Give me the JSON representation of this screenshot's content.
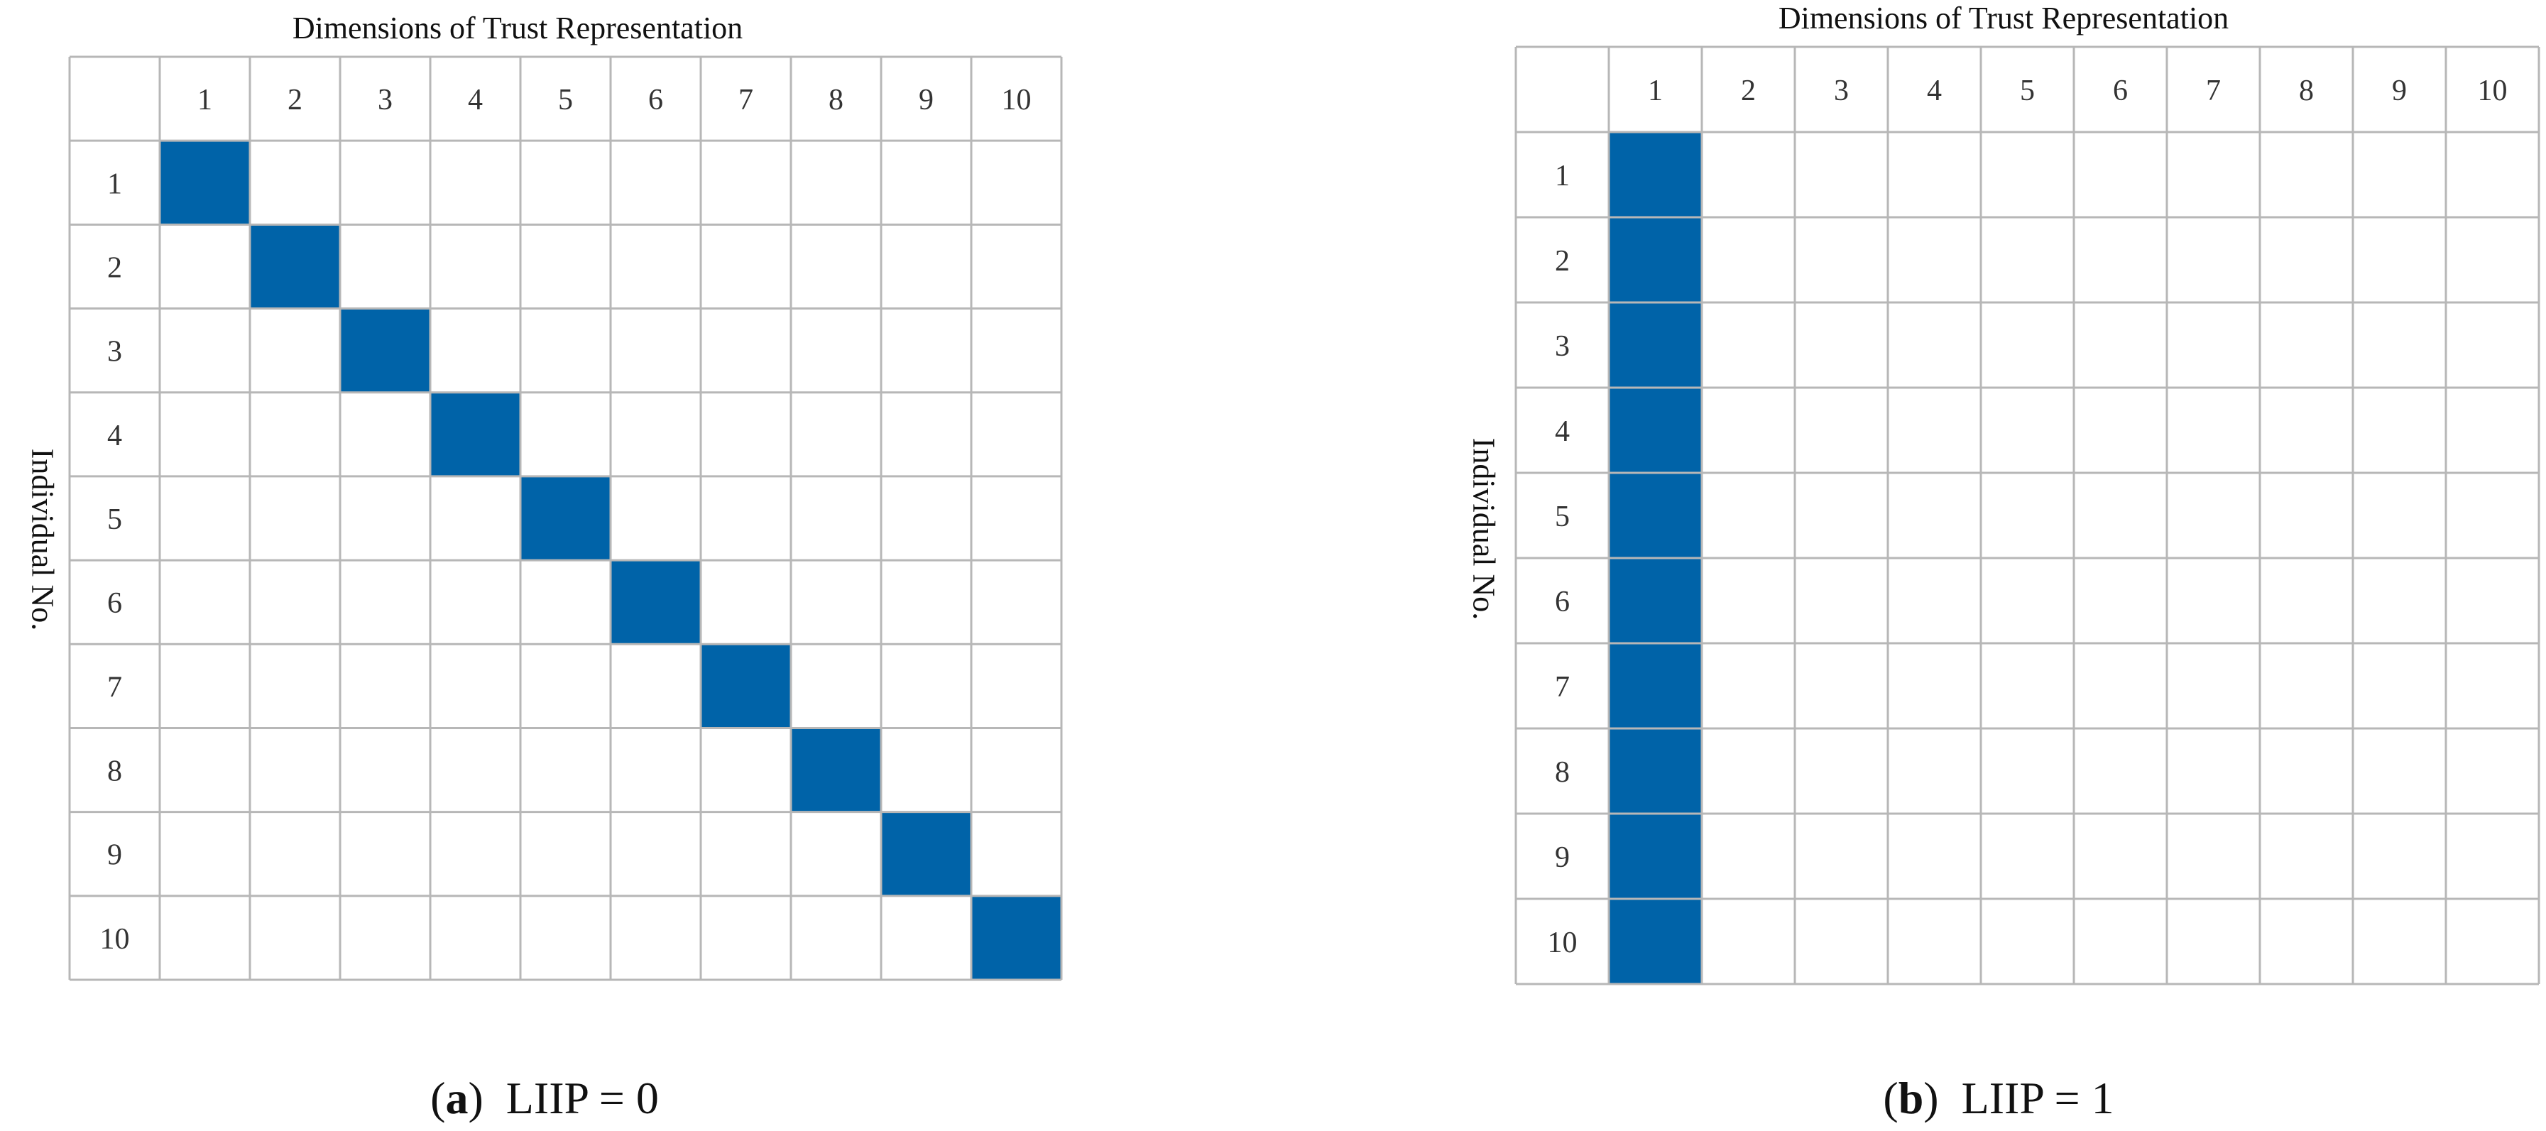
{
  "colors": {
    "grid_line": "#b7b7b7",
    "fill": "#0063a8",
    "label_text": "#333333"
  },
  "panels": [
    {
      "title": "Dimensions of Trust Representation",
      "ylabel": "Individual No.",
      "columns": [
        "1",
        "2",
        "3",
        "4",
        "5",
        "6",
        "7",
        "8",
        "9",
        "10"
      ],
      "rows": [
        "1",
        "2",
        "3",
        "4",
        "5",
        "6",
        "7",
        "8",
        "9",
        "10"
      ],
      "filled_cells": [
        [
          1,
          1
        ],
        [
          2,
          2
        ],
        [
          3,
          3
        ],
        [
          4,
          4
        ],
        [
          5,
          5
        ],
        [
          6,
          6
        ],
        [
          7,
          7
        ],
        [
          8,
          8
        ],
        [
          9,
          9
        ],
        [
          10,
          10
        ]
      ],
      "caption_letter": "a",
      "caption_text": "LIIP = 0"
    },
    {
      "title": "Dimensions of Trust Representation",
      "ylabel": "Individual No.",
      "columns": [
        "1",
        "2",
        "3",
        "4",
        "5",
        "6",
        "7",
        "8",
        "9",
        "10"
      ],
      "rows": [
        "1",
        "2",
        "3",
        "4",
        "5",
        "6",
        "7",
        "8",
        "9",
        "10"
      ],
      "filled_cells": [
        [
          1,
          1
        ],
        [
          2,
          1
        ],
        [
          3,
          1
        ],
        [
          4,
          1
        ],
        [
          5,
          1
        ],
        [
          6,
          1
        ],
        [
          7,
          1
        ],
        [
          8,
          1
        ],
        [
          9,
          1
        ],
        [
          10,
          1
        ]
      ],
      "caption_letter": "b",
      "caption_text": "LIIP = 1"
    }
  ]
}
